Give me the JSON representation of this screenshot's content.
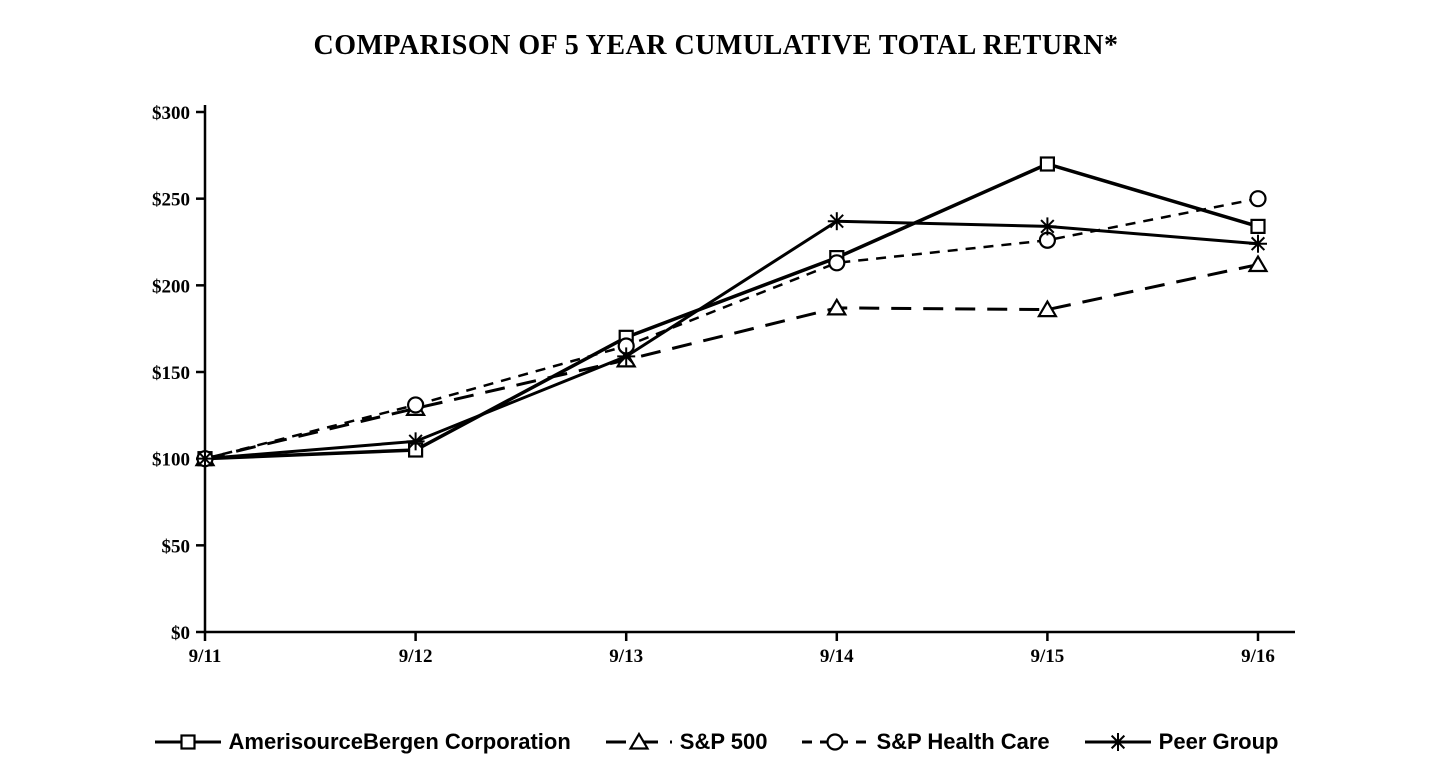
{
  "chart_data": {
    "type": "line",
    "title": "COMPARISON OF 5 YEAR CUMULATIVE TOTAL RETURN*",
    "categories": [
      "9/11",
      "9/12",
      "9/13",
      "9/14",
      "9/15",
      "9/16"
    ],
    "xlabel": "",
    "ylabel": "",
    "ylim": [
      0,
      300
    ],
    "yticks": [
      0,
      50,
      100,
      150,
      200,
      250,
      300
    ],
    "ytick_labels": [
      "$0",
      "$50",
      "$100",
      "$150",
      "$200",
      "$250",
      "$300"
    ],
    "grid": false,
    "legend_position": "bottom",
    "series": [
      {
        "id": "amerisourcebergen",
        "name": "AmerisourceBergen Corporation",
        "marker": "square",
        "line": "solid",
        "values": [
          100,
          105,
          170,
          216,
          270,
          234
        ]
      },
      {
        "id": "sp500",
        "name": "S&P 500",
        "marker": "triangle",
        "line": "long-dash",
        "values": [
          100,
          129,
          157,
          187,
          186,
          212
        ]
      },
      {
        "id": "sp-health-care",
        "name": "S&P Health Care",
        "marker": "circle",
        "line": "dash",
        "values": [
          100,
          131,
          165,
          213,
          226,
          250
        ]
      },
      {
        "id": "peer-group",
        "name": "Peer Group",
        "marker": "asterisk",
        "line": "solid",
        "values": [
          100,
          110,
          159,
          237,
          234,
          224
        ]
      }
    ],
    "colors": {
      "line": "#000000",
      "background": "#ffffff"
    }
  }
}
